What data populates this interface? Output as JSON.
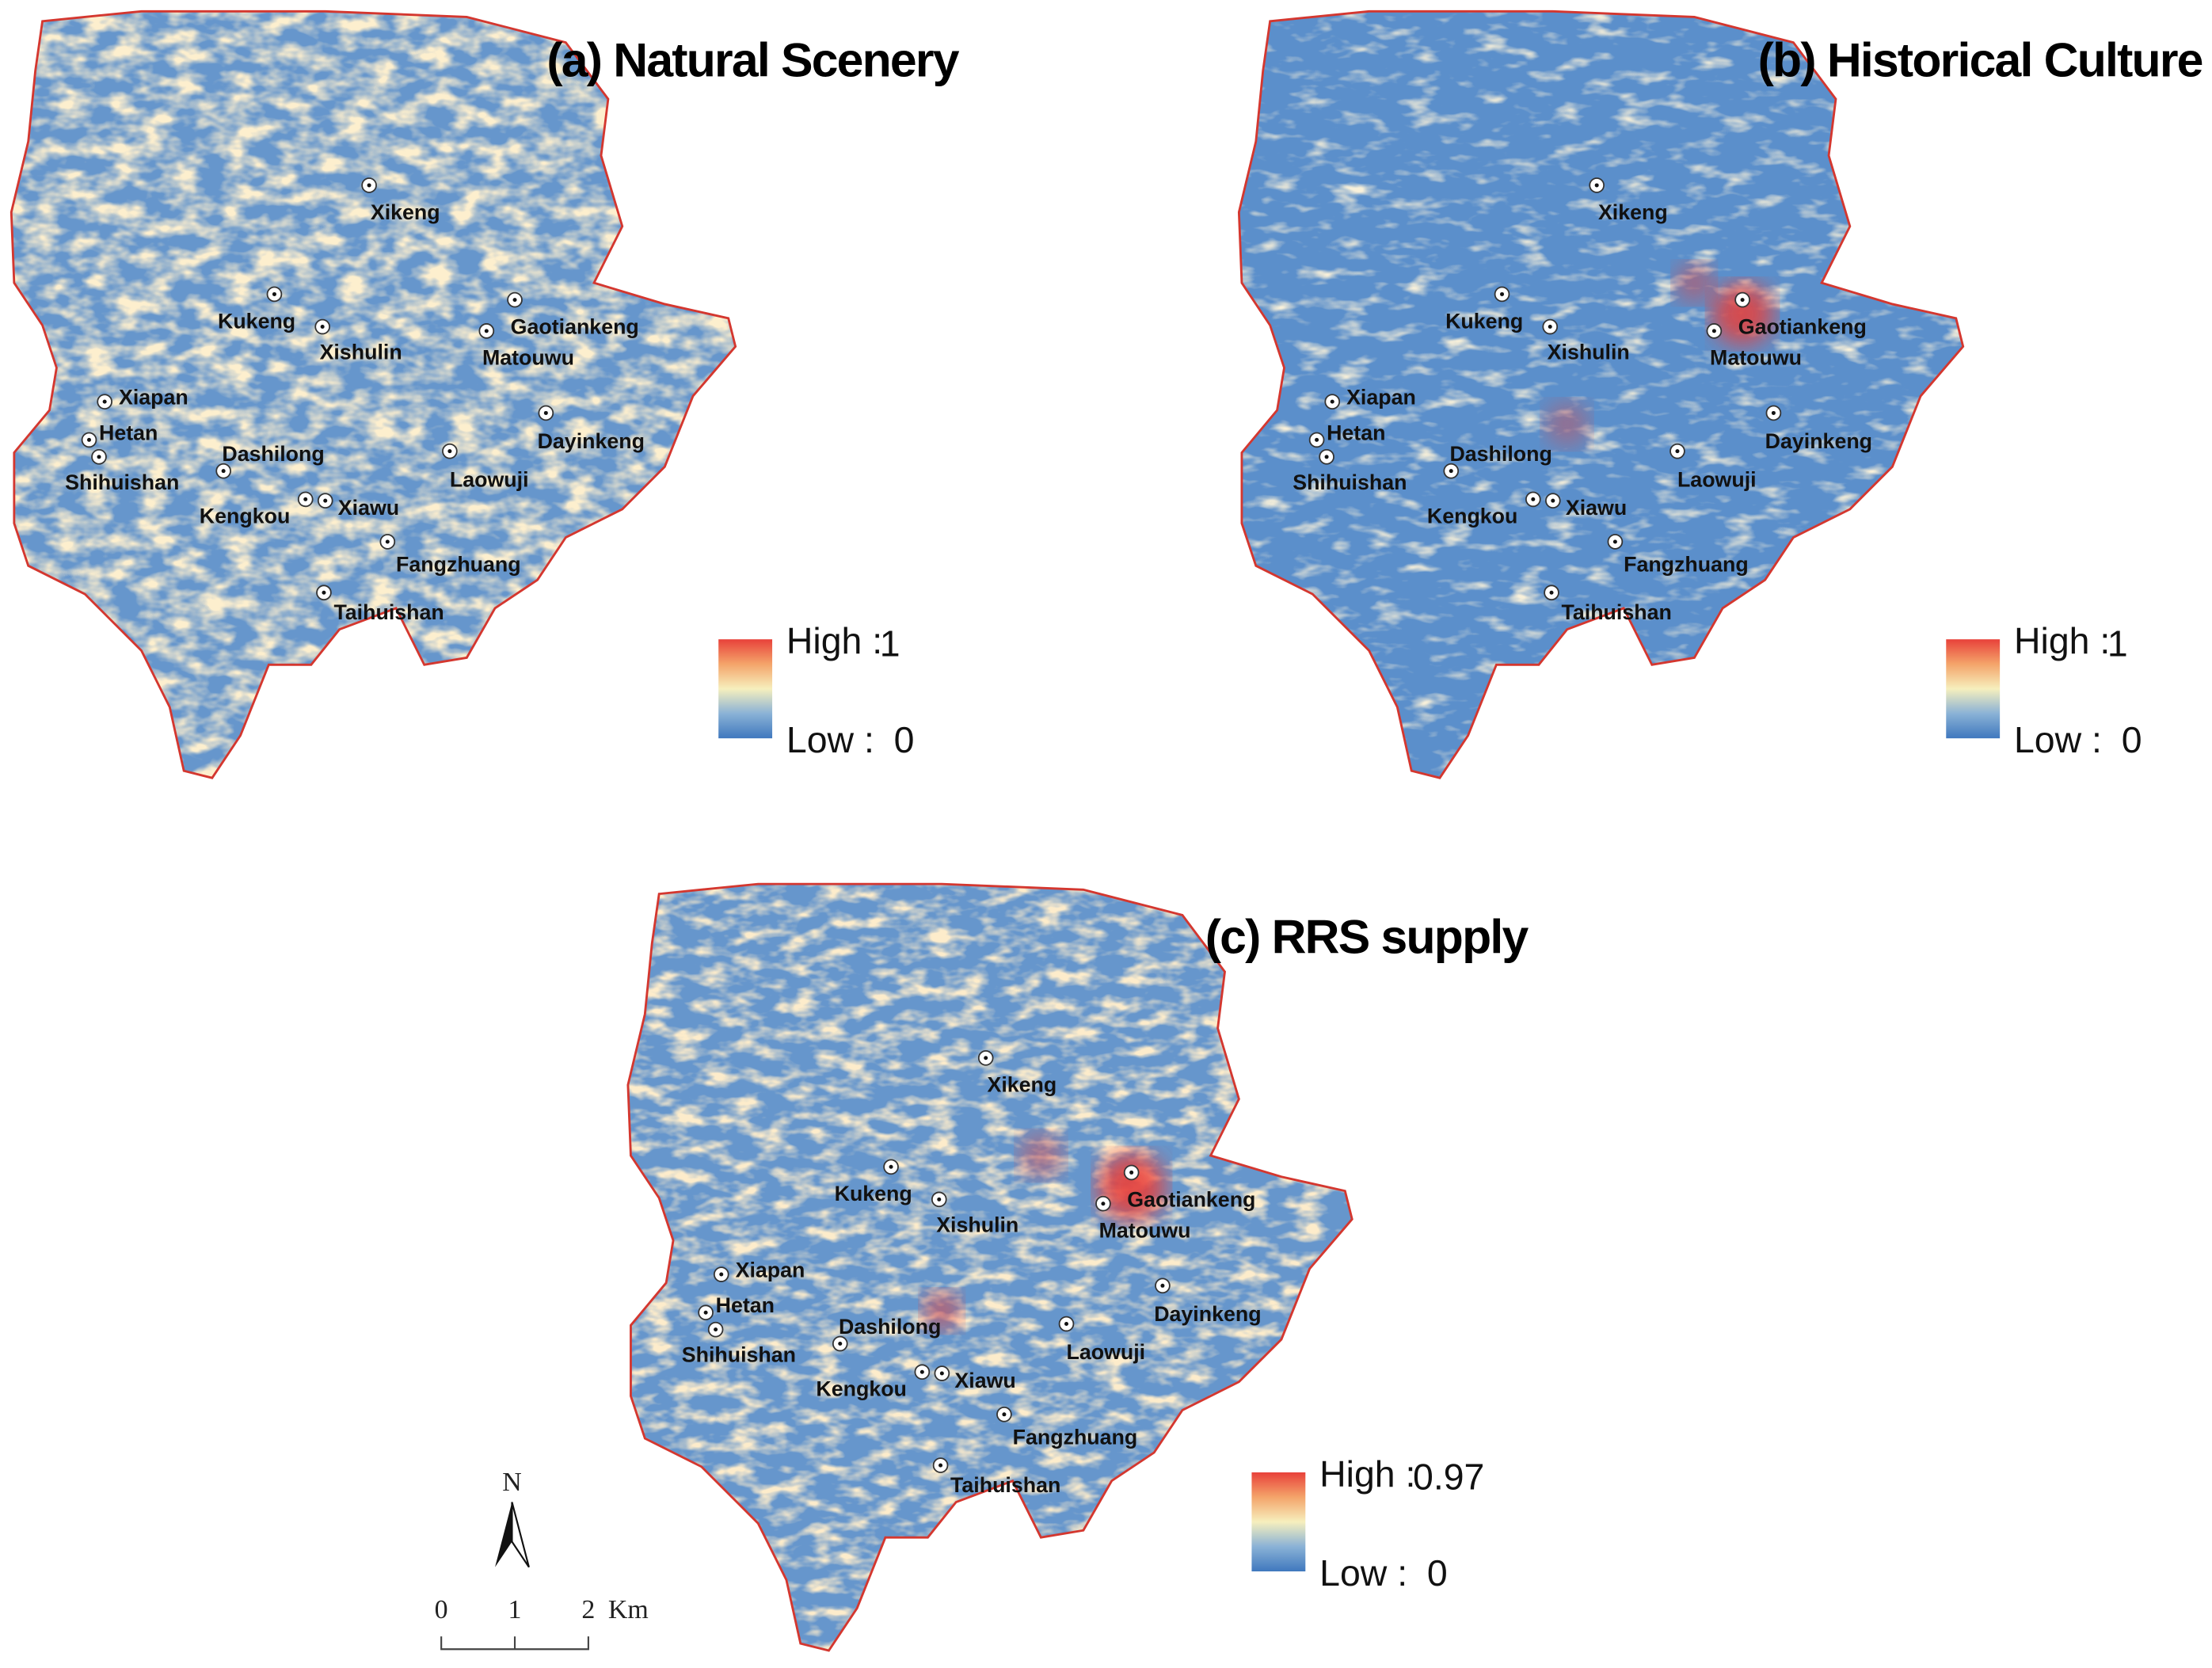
{
  "panels": [
    {
      "title": "(a) Natural Scenery",
      "legend": {
        "high": "High :",
        "high_value": 1,
        "low": "Low :",
        "low_value": 0
      }
    },
    {
      "title": "(b) Historical Culture",
      "legend": {
        "high": "High :",
        "high_value": 1,
        "low": "Low :",
        "low_value": 0
      }
    },
    {
      "title": "(c) RRS supply",
      "legend": {
        "high": "High :",
        "high_value": 0.97,
        "low": "Low :",
        "low_value": 0
      }
    }
  ],
  "places": [
    "Xikeng",
    "Kukeng",
    "Xishulin",
    "Gaotiankeng",
    "Matouwu",
    "Xiapan",
    "Hetan",
    "Shihuishan",
    "Dashilong",
    "Dayinkeng",
    "Laowuji",
    "Kengkou",
    "Xiawu",
    "Fangzhuang",
    "Taihuishan"
  ],
  "scale_bar": {
    "ticks": [
      0,
      1,
      2
    ],
    "unit": "Km"
  },
  "north": "N"
}
